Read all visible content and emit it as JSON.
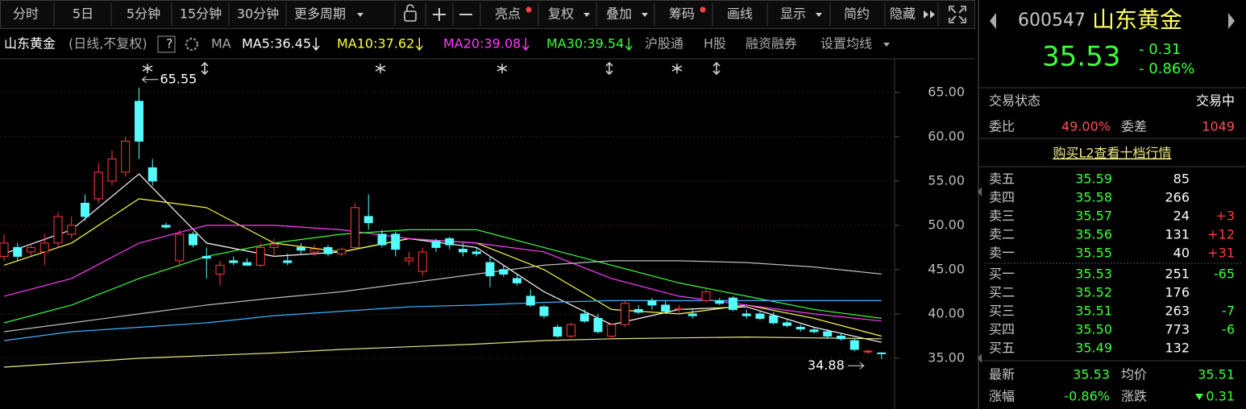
{
  "toolbar": {
    "periods": [
      "分时",
      "5日",
      "5分钟",
      "15分钟",
      "30分钟"
    ],
    "more": "更多周期",
    "tools": [
      "亮点",
      "复权",
      "叠加",
      "筹码",
      "画线",
      "显示",
      "简约",
      "隐藏"
    ]
  },
  "legend": {
    "name": "山东黄金",
    "mode": "(日线,不复权)",
    "help": "?",
    "ma": "MA",
    "items": [
      {
        "label": "MA5:36.45",
        "color": "#ffffff"
      },
      {
        "label": "MA10:37.62",
        "color": "#ffff3c"
      },
      {
        "label": "MA20:39.08",
        "color": "#ff3cff"
      },
      {
        "label": "MA30:39.54",
        "color": "#3cff3c"
      }
    ],
    "links": [
      "沪股通",
      "H股",
      "融资融券",
      "设置均线"
    ]
  },
  "chart_data": {
    "type": "candlestick",
    "open": [
      46.5,
      47.5,
      47,
      47,
      48,
      49,
      52.5,
      53,
      55,
      56,
      64,
      56.5,
      50,
      46,
      49,
      46.5,
      44.5,
      46,
      45.8,
      45.5,
      47.5,
      46,
      47.5,
      47,
      47.5,
      46.8,
      47.5,
      51,
      49,
      49,
      46,
      44.8,
      48.2,
      48.5,
      47.3,
      47,
      45.8,
      45,
      44,
      42,
      40.8,
      38.5,
      37.5,
      40,
      39.5,
      37.5,
      38.8,
      40.5,
      41.5,
      41,
      40.5,
      40,
      41.5,
      41.5,
      41.8,
      40,
      40,
      39.8,
      39,
      38.5,
      38.2,
      38,
      37.5,
      37,
      35.8,
      35.6
    ],
    "high": [
      49,
      48,
      48,
      49,
      51.5,
      51,
      53.5,
      57,
      58.5,
      60,
      65.55,
      57.5,
      50.3,
      49.5,
      49.3,
      47.5,
      46,
      46.5,
      46.3,
      48,
      48.5,
      46.8,
      48,
      47.8,
      47.8,
      47.5,
      52.5,
      53.5,
      49.5,
      49.3,
      47,
      47.5,
      48.5,
      48.7,
      48,
      47.5,
      46.5,
      45.5,
      44.5,
      42.8,
      41,
      38.8,
      39,
      40.5,
      40,
      39,
      41.5,
      41,
      41.8,
      41.5,
      41,
      40.5,
      42.8,
      41.8,
      42,
      40.5,
      40.3,
      40.2,
      39.3,
      38.8,
      38.5,
      38.3,
      37.8,
      37.3,
      36,
      35.7
    ],
    "low": [
      46,
      46,
      46.5,
      45.5,
      47.5,
      48.5,
      50.5,
      52.5,
      54.5,
      55.5,
      57.5,
      54.5,
      49.6,
      45.3,
      47.5,
      44,
      43.2,
      45.5,
      45.5,
      45.3,
      46.5,
      45.5,
      46.8,
      46.5,
      46.5,
      46.5,
      47.3,
      49.5,
      47.5,
      46.5,
      45.5,
      44.3,
      47,
      47.3,
      46.5,
      46.5,
      43,
      44.2,
      43.2,
      40.8,
      39.5,
      37.3,
      37.3,
      39,
      37.8,
      37.3,
      38.5,
      40,
      40.5,
      40,
      40,
      39.5,
      41.3,
      41,
      40.3,
      39.5,
      39.3,
      38.8,
      38.5,
      38,
      37.8,
      37.3,
      37,
      35.8,
      35.5,
      34.88
    ],
    "close": [
      48,
      46.5,
      47.5,
      48,
      51,
      50,
      51,
      56,
      57.5,
      59.5,
      59.5,
      55,
      49.8,
      49,
      47.8,
      46.3,
      45.5,
      45.8,
      45.5,
      47.5,
      47.8,
      45.8,
      47.2,
      47.3,
      46.8,
      47.3,
      52,
      50.3,
      47.8,
      47.3,
      46.3,
      47,
      47.5,
      47.8,
      47,
      46.8,
      44.3,
      44.5,
      43.5,
      41,
      39.8,
      37.5,
      38.8,
      39.2,
      38,
      38.8,
      41.2,
      40.2,
      41,
      40.3,
      40.6,
      39.8,
      42.5,
      41.2,
      40.5,
      39.8,
      39.5,
      39,
      38.7,
      38.3,
      38,
      37.5,
      37.2,
      36,
      35.8,
      35.53
    ],
    "up_color": "#ff3b3b",
    "down_color": "#54fcfc",
    "ylim": [
      30,
      66.8
    ],
    "yticks": [
      {
        "value": 35,
        "label": "35.00"
      },
      {
        "value": 40,
        "label": "40.00"
      },
      {
        "value": 45,
        "label": "45.00"
      },
      {
        "value": 50,
        "label": "50.00"
      },
      {
        "value": 55,
        "label": "55.00"
      },
      {
        "value": 60,
        "label": "60.00"
      },
      {
        "value": 65,
        "label": "65.00"
      }
    ],
    "grid": true,
    "lines": [
      {
        "color": "#ffffff",
        "x": [
          0,
          5,
          10,
          15,
          20,
          25,
          30,
          35,
          40,
          45,
          50,
          55,
          60,
          65
        ],
        "values": [
          46.8,
          49.5,
          55.8,
          48,
          46.5,
          47,
          48.5,
          47.5,
          42.5,
          38.8,
          40.5,
          40.8,
          38.5,
          36.8
        ]
      },
      {
        "color": "#ffff3c",
        "x": [
          0,
          5,
          10,
          15,
          20,
          25,
          30,
          35,
          40,
          45,
          50,
          55,
          60,
          65
        ],
        "values": [
          45.5,
          48,
          53,
          52,
          48,
          47,
          48.5,
          48,
          45,
          40.5,
          40,
          41,
          39.5,
          37.5
        ]
      },
      {
        "color": "#ff3cff",
        "x": [
          0,
          5,
          10,
          15,
          20,
          25,
          30,
          35,
          40,
          45,
          50,
          55,
          60,
          65
        ],
        "values": [
          42,
          44,
          48,
          50,
          50,
          49.5,
          48.5,
          48,
          47,
          44,
          42,
          41,
          40,
          39.2
        ]
      },
      {
        "color": "#3cff3c",
        "x": [
          0,
          5,
          10,
          15,
          20,
          25,
          30,
          35,
          40,
          45,
          50,
          55,
          60,
          65
        ],
        "values": [
          39,
          41,
          44,
          46.5,
          48,
          49,
          49.5,
          49.5,
          47.5,
          45.5,
          43.5,
          42,
          40.5,
          39.5
        ]
      },
      {
        "color": "#3cb4ff",
        "x": [
          0,
          5,
          10,
          15,
          20,
          25,
          30,
          35,
          40,
          45,
          50,
          55,
          60,
          65
        ],
        "values": [
          37,
          38,
          38.5,
          39,
          39.8,
          40.3,
          40.8,
          41,
          41.3,
          41.5,
          41.5,
          41.5,
          41.5,
          41.5
        ]
      },
      {
        "color": "#bdbdbd",
        "x": [
          0,
          5,
          10,
          15,
          20,
          25,
          30,
          35,
          40,
          45,
          50,
          55,
          60,
          65
        ],
        "values": [
          38,
          39,
          40,
          41,
          41.8,
          42.5,
          43.5,
          44.5,
          45.5,
          46,
          46,
          45.8,
          45.3,
          44.5
        ]
      },
      {
        "color": "#e6e68c",
        "x": [
          0,
          5,
          10,
          15,
          20,
          25,
          30,
          35,
          40,
          45,
          50,
          55,
          60,
          65
        ],
        "values": [
          34,
          34.5,
          35,
          35.3,
          35.6,
          36,
          36.3,
          36.6,
          37,
          37.2,
          37.3,
          37.4,
          37.3,
          37.2
        ]
      }
    ]
  },
  "quote": {
    "code": "600547",
    "name": "山东黄金",
    "price": "35.53",
    "change": "- 0.31",
    "pct": "- 0.86%",
    "status_label": "交易状态",
    "status": "交易中",
    "ratio_label": "委比",
    "ratio": "49.00%",
    "diff_label": "委差",
    "diff": "1049",
    "l2": "购买L2查看十档行情",
    "book": [
      {
        "label": "卖五",
        "price": "35.59",
        "volume": "85"
      },
      {
        "label": "卖四",
        "price": "35.58",
        "volume": "266"
      },
      {
        "label": "卖三",
        "price": "35.57",
        "volume": "24",
        "delta": "+3"
      },
      {
        "label": "卖二",
        "price": "35.56",
        "volume": "131",
        "delta": "+12"
      },
      {
        "label": "卖一",
        "price": "35.55",
        "volume": "40",
        "delta": "+31"
      },
      {
        "label": "买一",
        "price": "35.53",
        "volume": "251",
        "delta": "-65"
      },
      {
        "label": "买二",
        "price": "35.52",
        "volume": "176"
      },
      {
        "label": "买三",
        "price": "35.51",
        "volume": "263",
        "delta": "-7"
      },
      {
        "label": "买四",
        "price": "35.50",
        "volume": "773",
        "delta": "-6"
      },
      {
        "label": "买五",
        "price": "35.49",
        "volume": "132"
      }
    ],
    "last_label": "最新",
    "last": "35.53",
    "avg_label": "均价",
    "avg": "35.51",
    "pct_label": "涨幅",
    "pct2": "-0.86%",
    "chg_label": "涨跌",
    "chg2": "0.31"
  }
}
